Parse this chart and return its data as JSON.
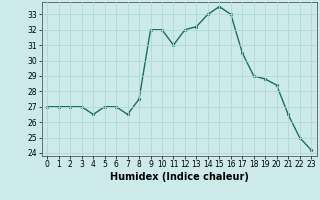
{
  "x": [
    0,
    1,
    2,
    3,
    4,
    5,
    6,
    7,
    8,
    9,
    10,
    11,
    12,
    13,
    14,
    15,
    16,
    17,
    18,
    19,
    20,
    21,
    22,
    23
  ],
  "y": [
    27.0,
    27.0,
    27.0,
    27.0,
    26.5,
    27.0,
    27.0,
    26.5,
    27.5,
    32.0,
    32.0,
    31.0,
    32.0,
    32.2,
    33.0,
    33.5,
    33.0,
    30.5,
    29.0,
    28.8,
    28.4,
    26.5,
    25.0,
    24.2
  ],
  "line_color": "#1a6e5e",
  "marker": "o",
  "markersize": 2.0,
  "linewidth": 1.0,
  "xlabel": "Humidex (Indice chaleur)",
  "xlim": [
    -0.5,
    23.5
  ],
  "ylim": [
    23.8,
    33.8
  ],
  "yticks": [
    24,
    25,
    26,
    27,
    28,
    29,
    30,
    31,
    32,
    33
  ],
  "xtick_labels": [
    "0",
    "1",
    "2",
    "3",
    "4",
    "5",
    "6",
    "7",
    "8",
    "9",
    "10",
    "11",
    "12",
    "13",
    "14",
    "15",
    "16",
    "17",
    "18",
    "19",
    "20",
    "21",
    "22",
    "23"
  ],
  "background_color": "#cceaea",
  "grid_color": "#b0d8d8",
  "tick_fontsize": 5.5,
  "xlabel_fontsize": 7.0
}
